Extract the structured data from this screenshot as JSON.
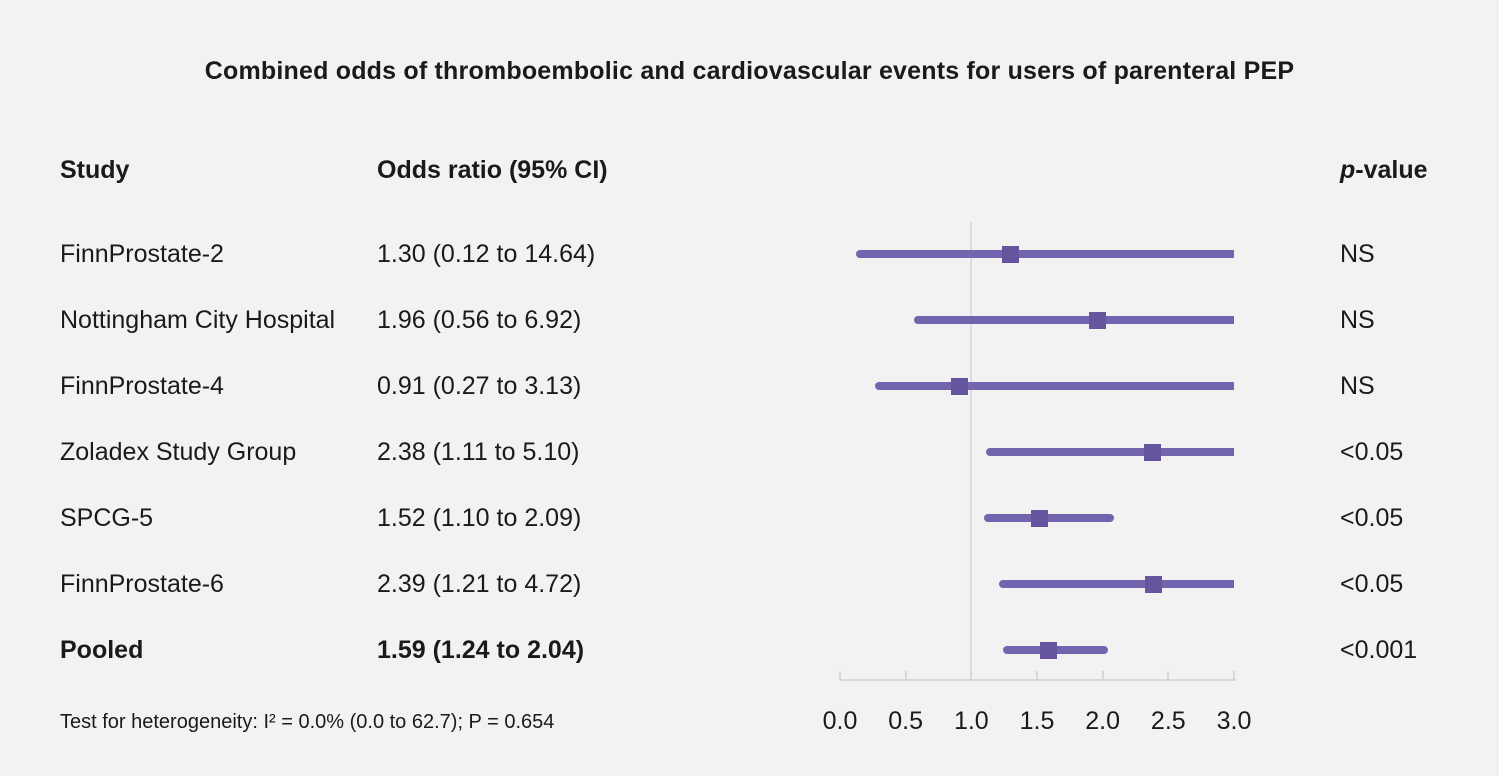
{
  "title": "Combined odds of thromboembolic and cardiovascular events for users of parenteral PEP",
  "columns": {
    "study": "Study",
    "odds_ratio": "Odds ratio (95% CI)",
    "p_italic": "p",
    "p_rest": "-value"
  },
  "footer": {
    "heterogeneity": "Test for heterogeneity: I² = 0.0% (0.0 to 62.7); P = 0.654"
  },
  "colors": {
    "background": "#f2f2f2",
    "text": "#1a1a1a",
    "accent_line": "#7265ad",
    "accent_marker": "#66549e",
    "reference_line": "#dcdfe2",
    "axis_line": "#d6d9db"
  },
  "chart_data": {
    "type": "scatter",
    "subtype": "forest-plot",
    "title": "Combined odds of thromboembolic and cardiovascular events for users of parenteral PEP",
    "xlabel": "",
    "ylabel": "",
    "xlim": [
      0.0,
      3.0
    ],
    "x_tick_values": [
      0.0,
      0.5,
      1.0,
      1.5,
      2.0,
      2.5,
      3.0
    ],
    "x_tick_labels": [
      "0.0",
      "0.5",
      "1.0",
      "1.5",
      "2.0",
      "2.5",
      "3.0"
    ],
    "reference_value": 1.0,
    "grid": false,
    "rows": [
      {
        "study": "FinnProstate-2",
        "or_text": "1.30 (0.12 to 14.64)",
        "estimate": 1.3,
        "ci_low": 0.12,
        "ci_high": 14.64,
        "p_value": "NS",
        "pooled": false
      },
      {
        "study": "Nottingham City Hospital",
        "or_text": "1.96 (0.56 to 6.92)",
        "estimate": 1.96,
        "ci_low": 0.56,
        "ci_high": 6.92,
        "p_value": "NS",
        "pooled": false
      },
      {
        "study": "FinnProstate-4",
        "or_text": "0.91 (0.27 to 3.13)",
        "estimate": 0.91,
        "ci_low": 0.27,
        "ci_high": 3.13,
        "p_value": "NS",
        "pooled": false
      },
      {
        "study": "Zoladex Study Group",
        "or_text": "2.38 (1.11 to 5.10)",
        "estimate": 2.38,
        "ci_low": 1.11,
        "ci_high": 5.1,
        "p_value": "<0.05",
        "pooled": false
      },
      {
        "study": "SPCG-5",
        "or_text": "1.52 (1.10 to 2.09)",
        "estimate": 1.52,
        "ci_low": 1.1,
        "ci_high": 2.09,
        "p_value": "<0.05",
        "pooled": false
      },
      {
        "study": "FinnProstate-6",
        "or_text": "2.39 (1.21 to 4.72)",
        "estimate": 2.39,
        "ci_low": 1.21,
        "ci_high": 4.72,
        "p_value": "<0.05",
        "pooled": false
      },
      {
        "study": "Pooled",
        "or_text": "1.59 (1.24 to 2.04)",
        "estimate": 1.59,
        "ci_low": 1.24,
        "ci_high": 2.04,
        "p_value": "<0.001",
        "pooled": true
      }
    ]
  }
}
